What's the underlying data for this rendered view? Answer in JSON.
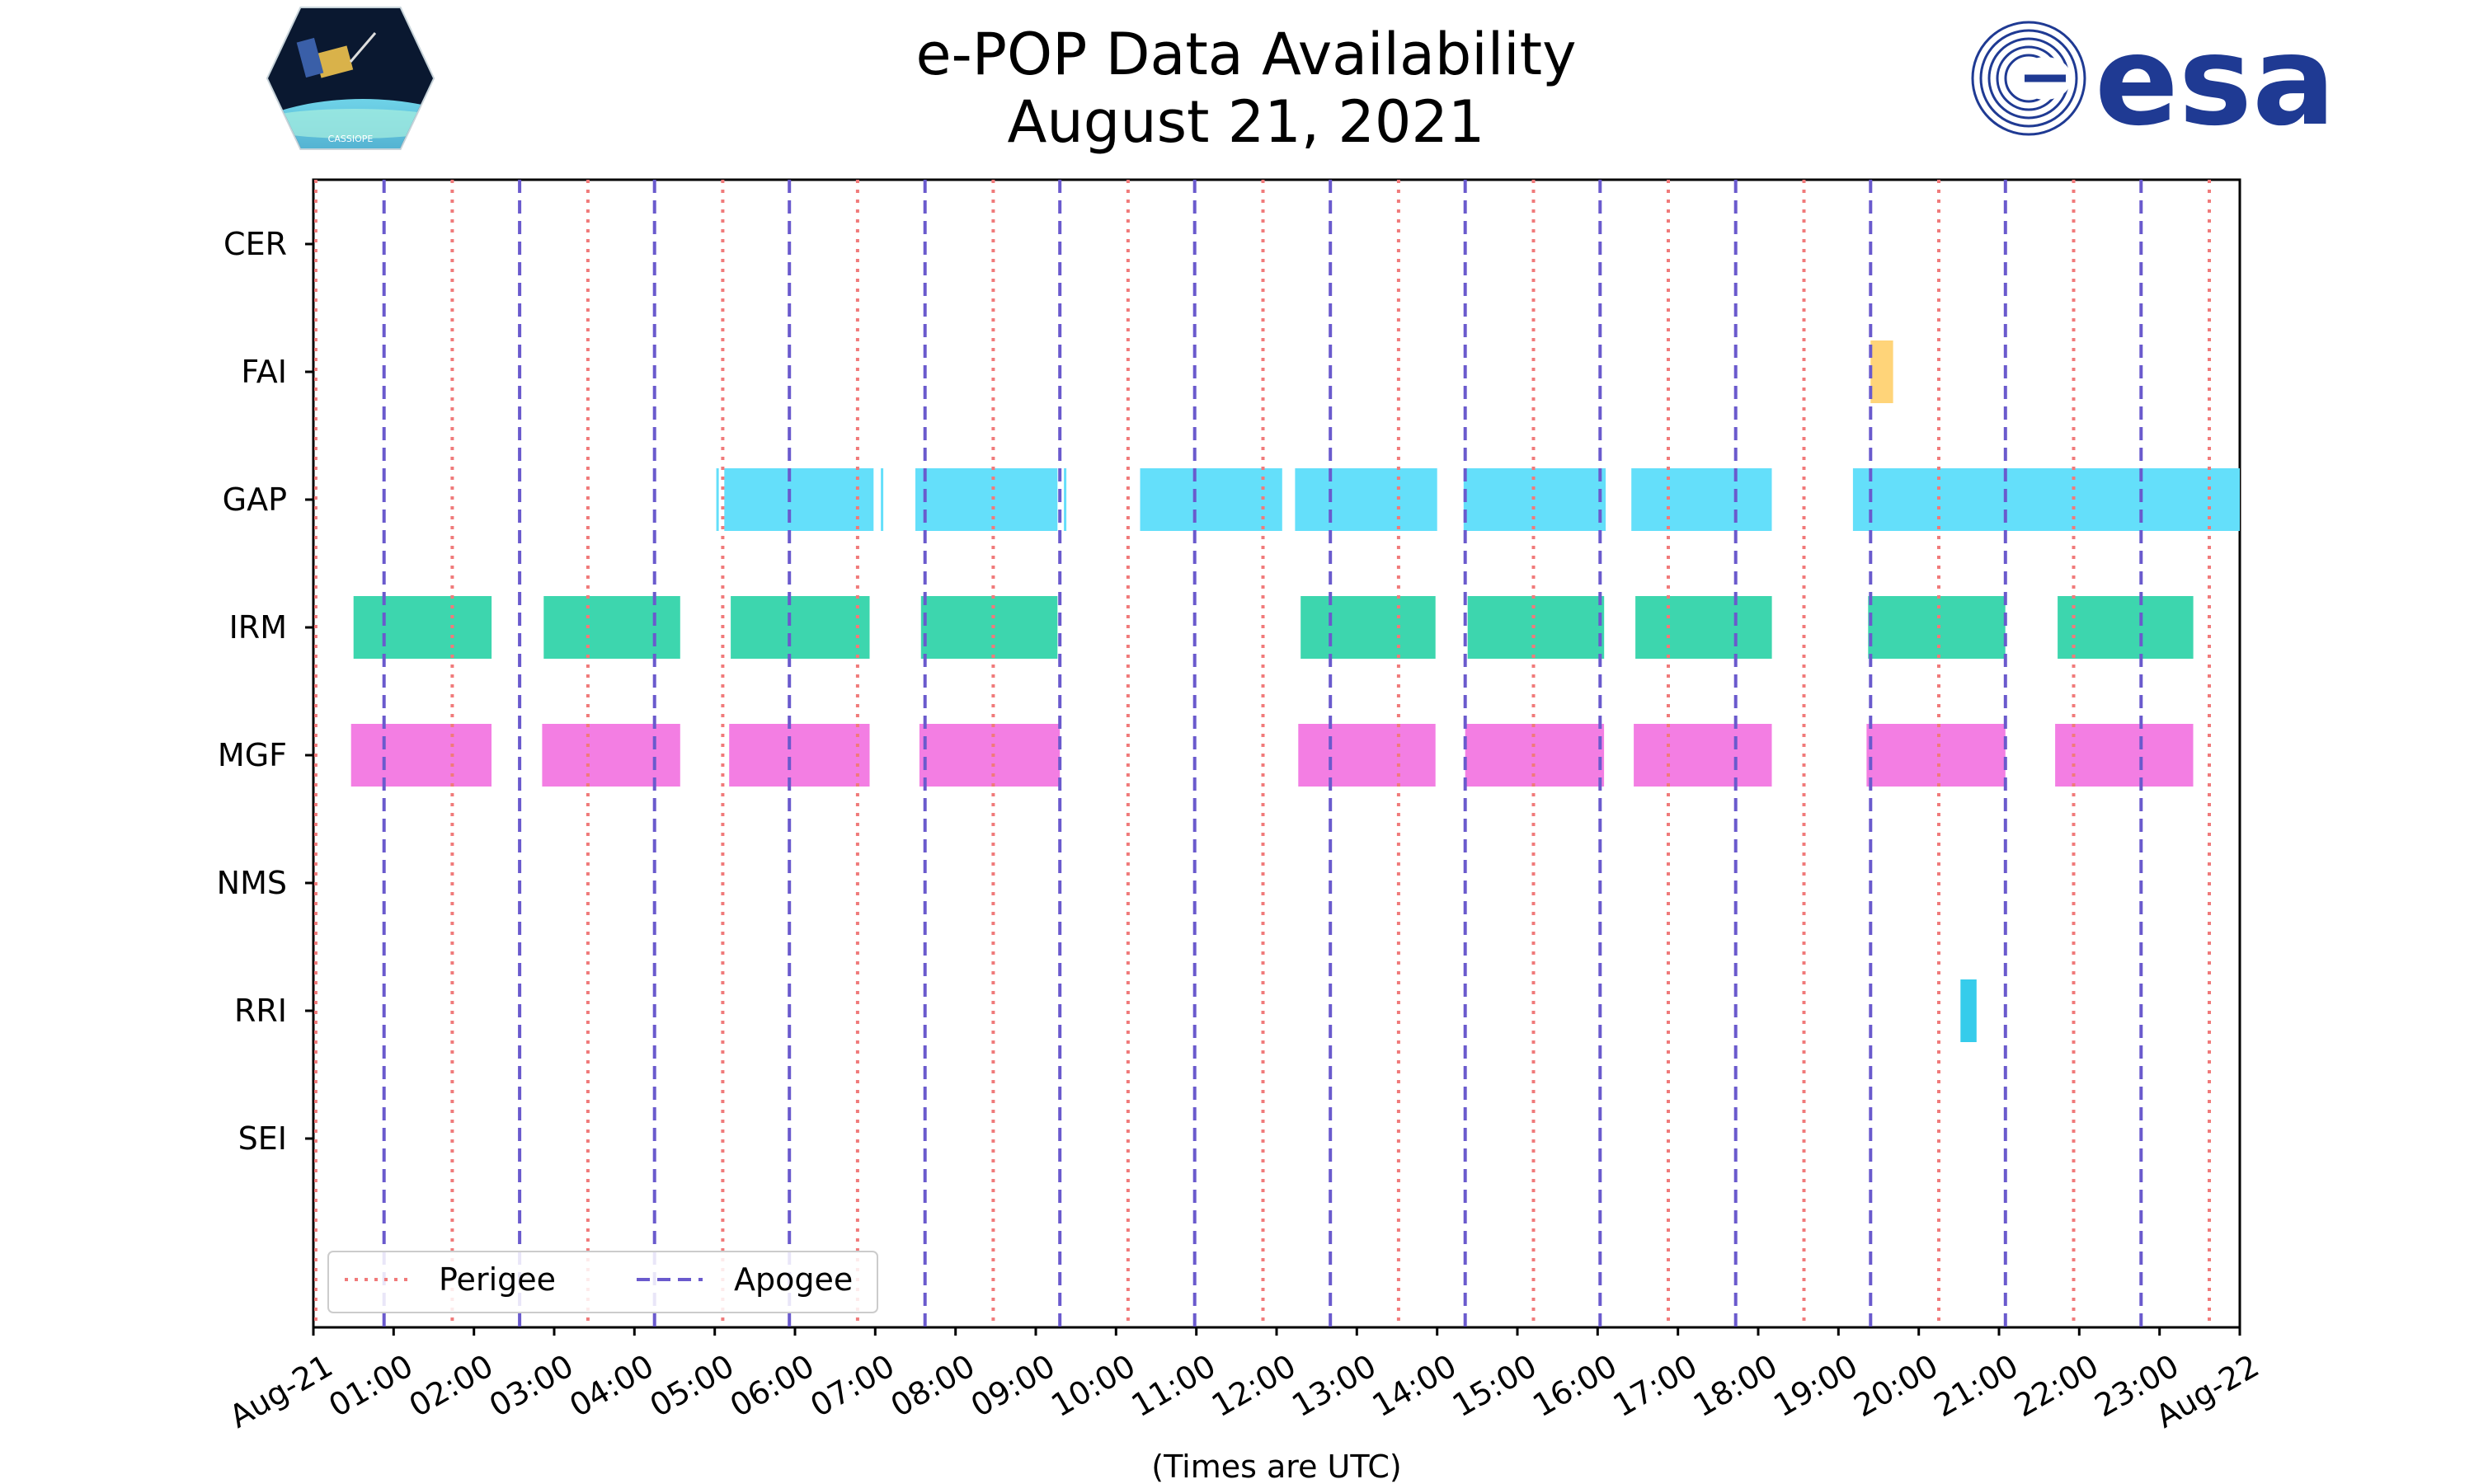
{
  "chart_data": {
    "type": "timeline",
    "title": "e-POP Data Availability",
    "subtitle": "August 21, 2021",
    "xlabel": "(Times are UTC)",
    "xlim": [
      0,
      24
    ],
    "x_tick_labels": [
      "Aug-21",
      "01:00",
      "02:00",
      "03:00",
      "04:00",
      "05:00",
      "06:00",
      "07:00",
      "08:00",
      "09:00",
      "10:00",
      "11:00",
      "12:00",
      "13:00",
      "14:00",
      "15:00",
      "16:00",
      "17:00",
      "18:00",
      "19:00",
      "20:00",
      "21:00",
      "22:00",
      "23:00",
      "Aug-22"
    ],
    "instruments": [
      "CER",
      "FAI",
      "GAP",
      "IRM",
      "MGF",
      "NMS",
      "RRI",
      "SEI"
    ],
    "perigee_hours": [
      0.03,
      1.73,
      3.42,
      5.1,
      6.78,
      8.47,
      10.15,
      11.83,
      13.52,
      15.2,
      16.88,
      18.57,
      20.25,
      21.93,
      23.62
    ],
    "apogee_hours": [
      0.88,
      2.57,
      4.25,
      5.93,
      7.62,
      9.3,
      10.98,
      12.67,
      14.35,
      16.03,
      17.72,
      19.4,
      21.08,
      22.77
    ],
    "series": [
      {
        "name": "CER",
        "color": "#5b8ff9",
        "intervals": []
      },
      {
        "name": "FAI",
        "color": "#ffd479",
        "intervals": [
          [
            19.4,
            19.68
          ]
        ]
      },
      {
        "name": "GAP",
        "color": "#64dffa",
        "intervals": [
          [
            5.02,
            5.04
          ],
          [
            5.12,
            6.98
          ],
          [
            7.07,
            7.1
          ],
          [
            7.5,
            9.27
          ],
          [
            9.35,
            9.37
          ],
          [
            10.3,
            12.07
          ],
          [
            12.23,
            14.0
          ],
          [
            14.33,
            16.1
          ],
          [
            16.42,
            18.17
          ],
          [
            19.18,
            24.0
          ]
        ]
      },
      {
        "name": "IRM",
        "color": "#3dd6ae",
        "intervals": [
          [
            0.5,
            2.22
          ],
          [
            2.87,
            4.57
          ],
          [
            5.2,
            6.93
          ],
          [
            7.57,
            9.27
          ],
          [
            12.3,
            13.98
          ],
          [
            14.38,
            16.08
          ],
          [
            16.47,
            18.17
          ],
          [
            19.37,
            21.08
          ],
          [
            21.73,
            23.42
          ]
        ]
      },
      {
        "name": "MGF",
        "color": "#f37ee3",
        "intervals": [
          [
            0.47,
            2.22
          ],
          [
            2.85,
            4.57
          ],
          [
            5.18,
            6.93
          ],
          [
            7.55,
            9.3
          ],
          [
            12.27,
            13.98
          ],
          [
            14.35,
            16.08
          ],
          [
            16.45,
            18.17
          ],
          [
            19.35,
            21.08
          ],
          [
            21.7,
            23.42
          ]
        ]
      },
      {
        "name": "NMS",
        "color": "#8c8cff",
        "intervals": []
      },
      {
        "name": "RRI",
        "color": "#35cceb",
        "intervals": [
          [
            20.52,
            20.72
          ]
        ]
      },
      {
        "name": "SEI",
        "color": "#aaaaaa",
        "intervals": []
      }
    ],
    "legend": {
      "placement": "bottom-left",
      "entries": [
        {
          "label": "Perigee",
          "style": "dotted",
          "color": "#f07a7a"
        },
        {
          "label": "Apogee",
          "style": "dashed",
          "color": "#6a5acd"
        }
      ]
    }
  },
  "logos": {
    "left": {
      "name": "CASSIOPE",
      "text": "CASSIOPE"
    },
    "right": {
      "name": "esa",
      "text": "esa",
      "color": "#1f3a93"
    }
  }
}
